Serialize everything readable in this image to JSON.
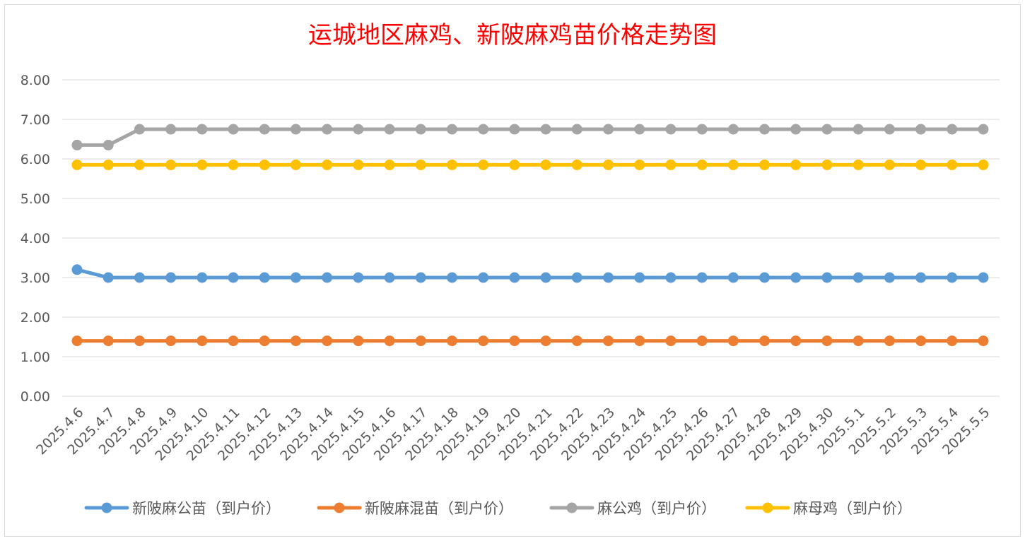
{
  "chart_data": {
    "type": "line",
    "title": "运城地区麻鸡、新陂麻鸡苗价格走势图",
    "xlabel": "",
    "ylabel": "",
    "ylim": [
      0,
      8
    ],
    "yticks": [
      "0.00",
      "1.00",
      "2.00",
      "3.00",
      "4.00",
      "5.00",
      "6.00",
      "7.00",
      "8.00"
    ],
    "grid": true,
    "legend_position": "bottom",
    "categories": [
      "2025.4.6",
      "2025.4.7",
      "2025.4.8",
      "2025.4.9",
      "2025.4.10",
      "2025.4.11",
      "2025.4.12",
      "2025.4.13",
      "2025.4.14",
      "2025.4.15",
      "2025.4.16",
      "2025.4.17",
      "2025.4.18",
      "2025.4.19",
      "2025.4.20",
      "2025.4.21",
      "2025.4.22",
      "2025.4.23",
      "2025.4.24",
      "2025.4.25",
      "2025.4.26",
      "2025.4.27",
      "2025.4.28",
      "2025.4.29",
      "2025.4.30",
      "2025.5.1",
      "2025.5.2",
      "2025.5.3",
      "2025.5.4",
      "2025.5.5"
    ],
    "series": [
      {
        "name": "新陂麻公苗（到户价）",
        "color": "#5b9bd5",
        "values": [
          3.2,
          3.0,
          3.0,
          3.0,
          3.0,
          3.0,
          3.0,
          3.0,
          3.0,
          3.0,
          3.0,
          3.0,
          3.0,
          3.0,
          3.0,
          3.0,
          3.0,
          3.0,
          3.0,
          3.0,
          3.0,
          3.0,
          3.0,
          3.0,
          3.0,
          3.0,
          3.0,
          3.0,
          3.0,
          3.0
        ]
      },
      {
        "name": "新陂麻混苗（到户价）",
        "color": "#ed7d31",
        "values": [
          1.4,
          1.4,
          1.4,
          1.4,
          1.4,
          1.4,
          1.4,
          1.4,
          1.4,
          1.4,
          1.4,
          1.4,
          1.4,
          1.4,
          1.4,
          1.4,
          1.4,
          1.4,
          1.4,
          1.4,
          1.4,
          1.4,
          1.4,
          1.4,
          1.4,
          1.4,
          1.4,
          1.4,
          1.4,
          1.4
        ]
      },
      {
        "name": "麻公鸡（到户价）",
        "color": "#a5a5a5",
        "values": [
          6.35,
          6.35,
          6.75,
          6.75,
          6.75,
          6.75,
          6.75,
          6.75,
          6.75,
          6.75,
          6.75,
          6.75,
          6.75,
          6.75,
          6.75,
          6.75,
          6.75,
          6.75,
          6.75,
          6.75,
          6.75,
          6.75,
          6.75,
          6.75,
          6.75,
          6.75,
          6.75,
          6.75,
          6.75,
          6.75
        ]
      },
      {
        "name": "麻母鸡（到户价）",
        "color": "#ffc000",
        "values": [
          5.85,
          5.85,
          5.85,
          5.85,
          5.85,
          5.85,
          5.85,
          5.85,
          5.85,
          5.85,
          5.85,
          5.85,
          5.85,
          5.85,
          5.85,
          5.85,
          5.85,
          5.85,
          5.85,
          5.85,
          5.85,
          5.85,
          5.85,
          5.85,
          5.85,
          5.85,
          5.85,
          5.85,
          5.85,
          5.85
        ]
      }
    ]
  }
}
